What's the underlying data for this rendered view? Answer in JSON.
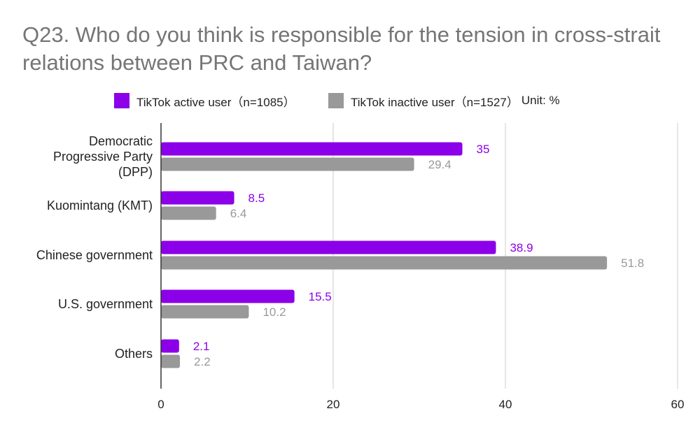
{
  "chart_data": {
    "type": "bar",
    "orientation": "horizontal",
    "title": "Q23. Who do you think is responsible for the tension in cross-strait relations between PRC and Taiwan?",
    "categories": [
      [
        "Democratic",
        "Progressive Party",
        "(DPP)"
      ],
      [
        "Kuomintang (KMT)"
      ],
      [
        "Chinese government"
      ],
      [
        "U.S. government"
      ],
      [
        "Others"
      ]
    ],
    "series": [
      {
        "name": "TikTok active user（n=1085）",
        "color": "#8b00e8",
        "label_color": "#8b00e8",
        "values": [
          35,
          8.5,
          38.9,
          15.5,
          2.1
        ],
        "labels": [
          "35",
          "8.5",
          "38.9",
          "15.5",
          "2.1"
        ]
      },
      {
        "name": "TikTok inactive user（n=1527）",
        "color": "#999999",
        "label_color": "#999999",
        "values": [
          29.4,
          6.4,
          51.8,
          10.2,
          2.2
        ],
        "labels": [
          "29.4",
          "6.4",
          "51.8",
          "10.2",
          "2.2"
        ]
      }
    ],
    "legend_suffix": "Unit: %",
    "xlim": [
      0,
      60
    ],
    "xticks": [
      "0",
      "20",
      "40",
      "60"
    ],
    "grid": true,
    "legend_position": "top"
  }
}
